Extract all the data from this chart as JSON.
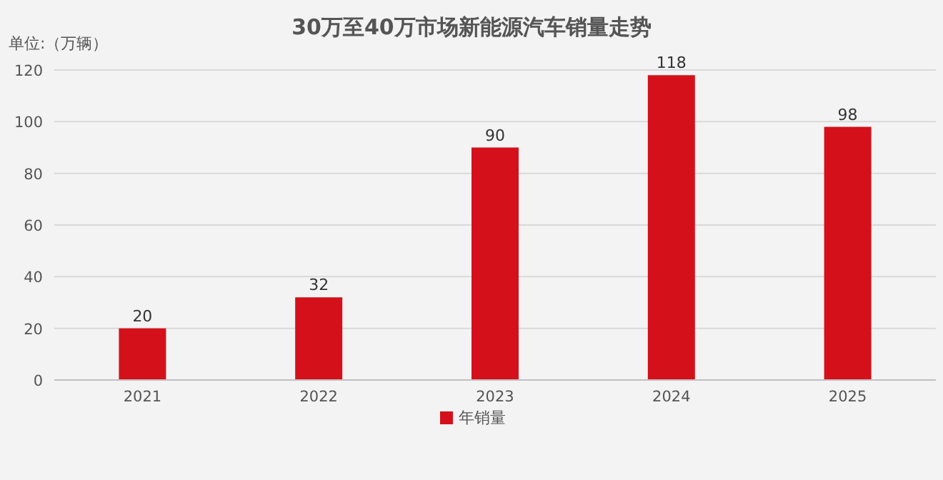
{
  "chart_data": {
    "type": "bar",
    "title": "30万至40万市场新能源汽车销量走势",
    "ylabel": "单位:（万辆）",
    "categories": [
      "2021",
      "2022",
      "2023",
      "2024",
      "2025"
    ],
    "series": [
      {
        "name": "年销量",
        "color": "#d4111b",
        "values": [
          20,
          32,
          90,
          118,
          98
        ]
      }
    ],
    "ylim": [
      0,
      120
    ],
    "yticks": [
      0,
      20,
      40,
      60,
      80,
      100,
      120
    ],
    "grid": "y",
    "legend": "bottom",
    "data_labels": true
  }
}
